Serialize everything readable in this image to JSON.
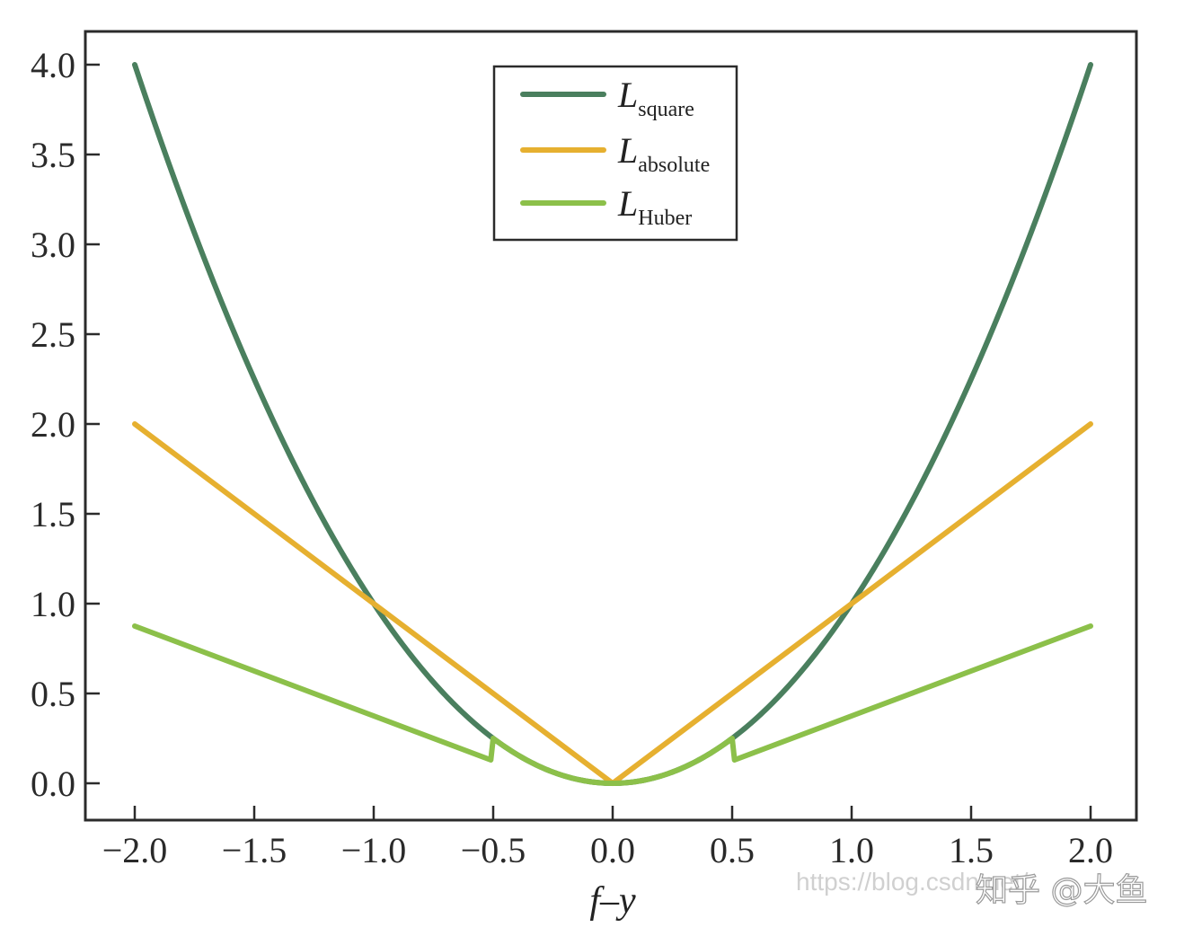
{
  "chart_data": {
    "type": "line",
    "title": "",
    "xlabel": "f–y",
    "ylabel": "",
    "xlim": [
      -2.2,
      2.2
    ],
    "ylim": [
      -0.2,
      4.2
    ],
    "grid": false,
    "legend_position": "upper center",
    "x_ticks": [
      "−2.0",
      "−1.5",
      "−1.0",
      "−0.5",
      "0.0",
      "0.5",
      "1.0",
      "1.5",
      "2.0"
    ],
    "y_ticks": [
      "0.0",
      "0.5",
      "1.0",
      "1.5",
      "2.0",
      "2.5",
      "3.0",
      "3.5",
      "4.0"
    ],
    "x": [
      -2.0,
      -1.75,
      -1.5,
      -1.25,
      -1.0,
      -0.75,
      -0.5,
      -0.25,
      0.0,
      0.25,
      0.5,
      0.75,
      1.0,
      1.25,
      1.5,
      1.75,
      2.0
    ],
    "series": [
      {
        "name": "L_square",
        "label_main": "L",
        "label_sub": "square",
        "color": "#4a7f5e",
        "formula": "(f-y)^2",
        "values": [
          4.0,
          3.0625,
          2.25,
          1.5625,
          1.0,
          0.5625,
          0.25,
          0.0625,
          0.0,
          0.0625,
          0.25,
          0.5625,
          1.0,
          1.5625,
          2.25,
          3.0625,
          4.0
        ]
      },
      {
        "name": "L_absolute",
        "label_main": "L",
        "label_sub": "absolute",
        "color": "#e6b030",
        "formula": "|f-y|",
        "values": [
          2.0,
          1.75,
          1.5,
          1.25,
          1.0,
          0.75,
          0.5,
          0.25,
          0.0,
          0.25,
          0.5,
          0.75,
          1.0,
          1.25,
          1.5,
          1.75,
          2.0
        ]
      },
      {
        "name": "L_Huber",
        "label_main": "L",
        "label_sub": "Huber",
        "color": "#8cc04a",
        "formula": "delta=0.5: (f-y)^2 if |f-y|<=0.5 else 0.5*(|f-y|-0.25)",
        "values": [
          0.875,
          0.75,
          0.625,
          0.5,
          0.375,
          0.25,
          0.25,
          0.0625,
          0.0,
          0.0625,
          0.25,
          0.25,
          0.375,
          0.5,
          0.625,
          0.75,
          0.875
        ]
      }
    ]
  },
  "watermark": {
    "url_text": "https://blog.csdn.net/",
    "brand_text": "知乎 @大鱼"
  }
}
